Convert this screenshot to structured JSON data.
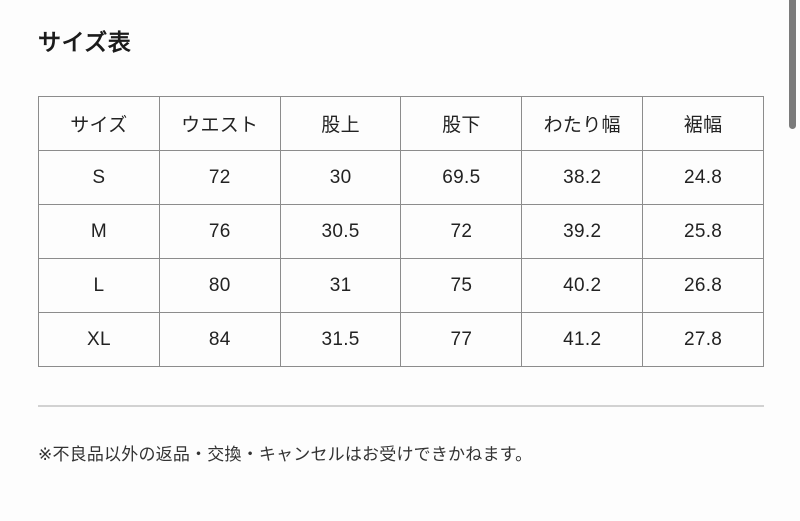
{
  "colors": {
    "page-bg": "#fdfdfd",
    "text": "#222222",
    "title-text": "#1b1b1b",
    "table-border": "#8c8c8c",
    "divider": "#d2d2d2",
    "scrollbar": "#7b7b7b"
  },
  "page": {
    "title": "サイズ表",
    "note": "※不良品以外の返品・交換・キャンセルはお受けできかねます。"
  },
  "size_table": {
    "columns": [
      "サイズ",
      "ウエスト",
      "股上",
      "股下",
      "わたり幅",
      "裾幅"
    ],
    "rows": [
      [
        "S",
        "72",
        "30",
        "69.5",
        "38.2",
        "24.8"
      ],
      [
        "M",
        "76",
        "30.5",
        "72",
        "39.2",
        "25.8"
      ],
      [
        "L",
        "80",
        "31",
        "75",
        "40.2",
        "26.8"
      ],
      [
        "XL",
        "84",
        "31.5",
        "77",
        "41.2",
        "27.8"
      ]
    ]
  }
}
